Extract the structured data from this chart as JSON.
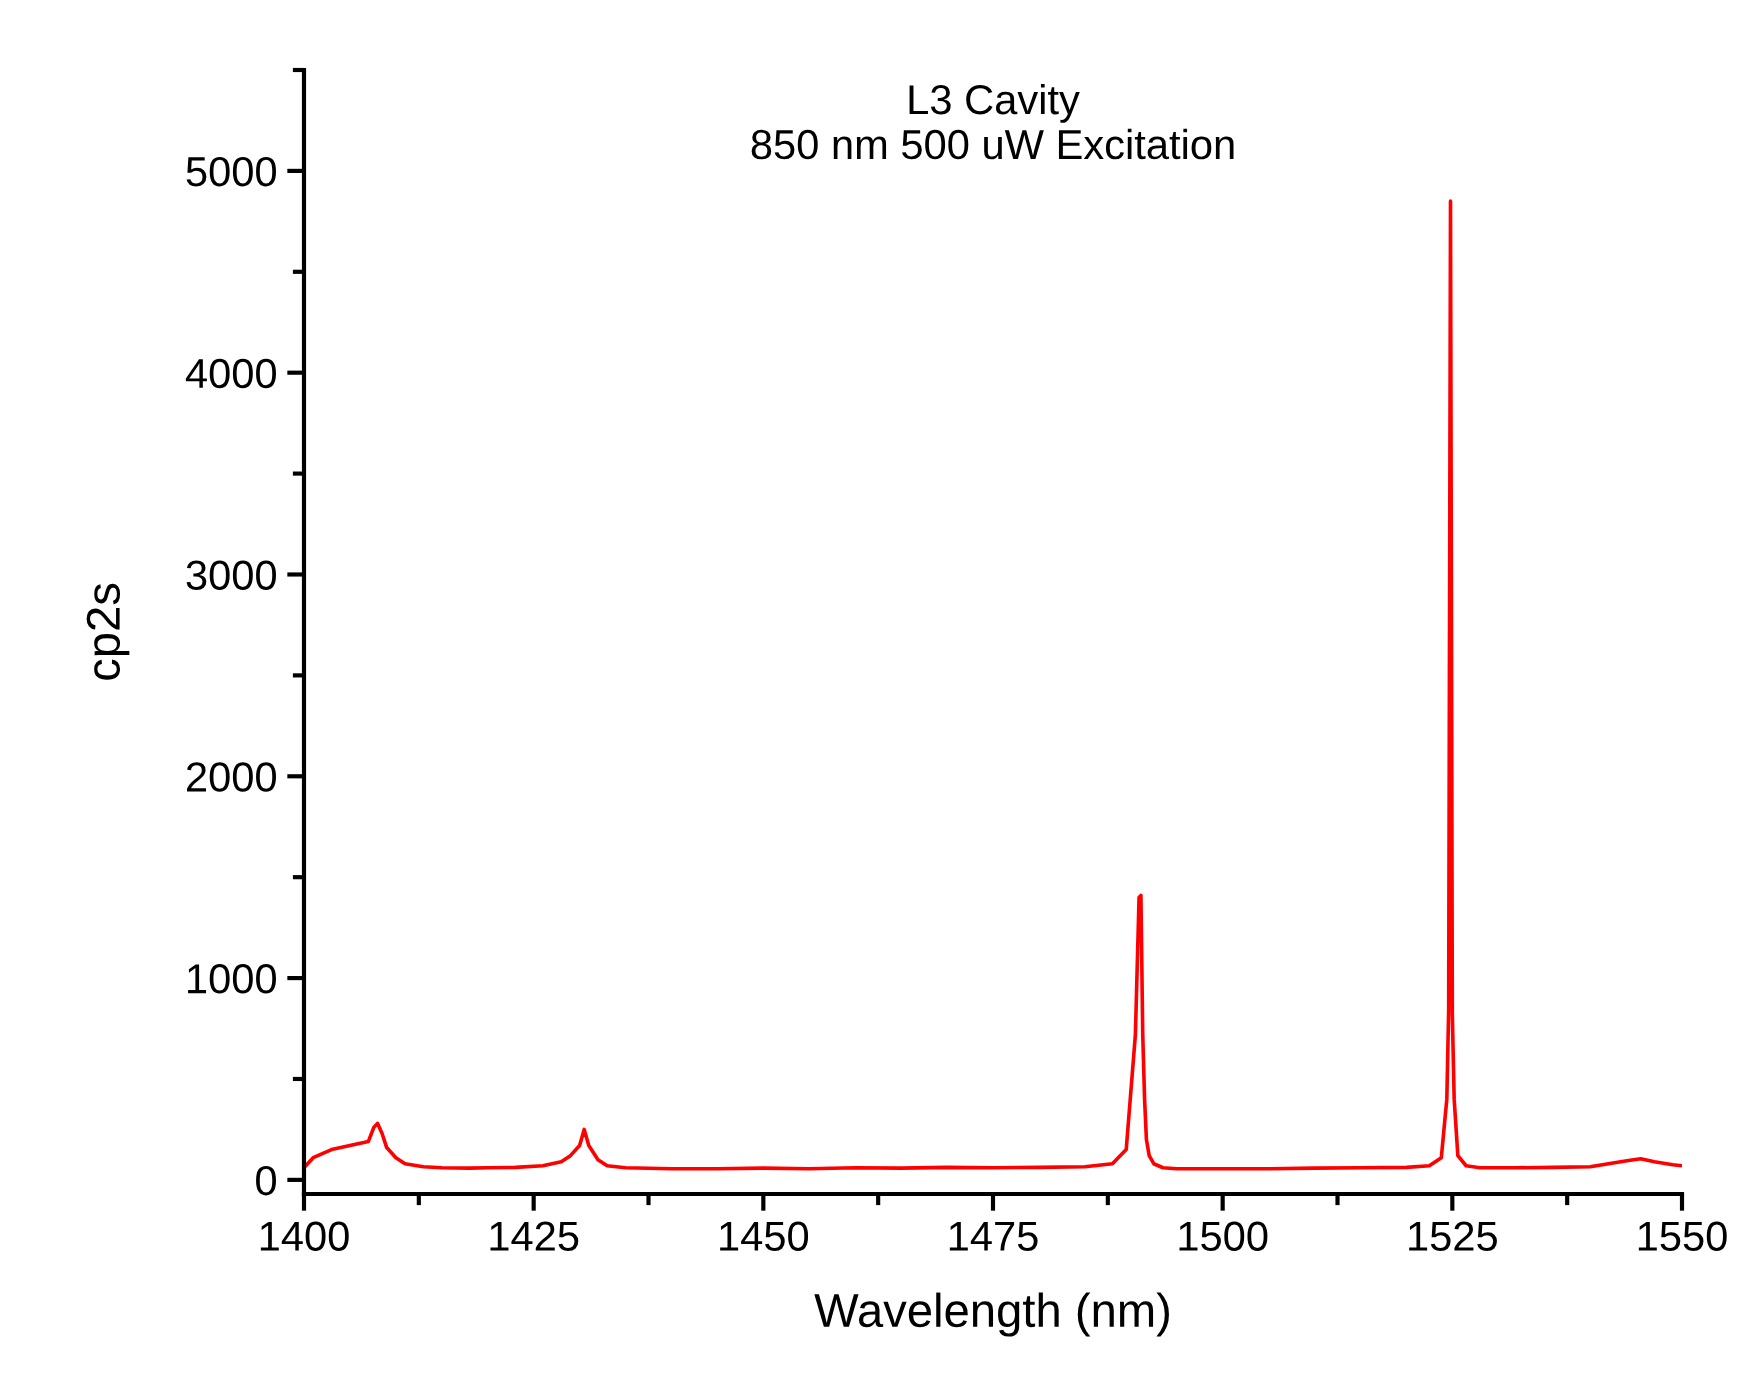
{
  "chart_data": {
    "type": "line",
    "title": "L3 Cavity\n850 nm 500 uW Excitation",
    "xlabel": "Wavelength (nm)",
    "ylabel": "cp2s",
    "xlim": [
      1400,
      1550
    ],
    "xticks": [
      1400,
      1425,
      1450,
      1475,
      1500,
      1525,
      1550
    ],
    "ylim": [
      -70,
      5500
    ],
    "yticks": [
      0,
      1000,
      2000,
      3000,
      4000,
      5000
    ],
    "grid": false,
    "legend": false,
    "series": [
      {
        "color": "#ff0000",
        "x": [
          1400,
          1401,
          1402,
          1403,
          1404,
          1405,
          1406,
          1407,
          1407.6,
          1408,
          1408.5,
          1409,
          1410,
          1411,
          1413,
          1415,
          1418,
          1420,
          1423,
          1426,
          1428,
          1429,
          1430,
          1430.5,
          1431,
          1432,
          1433,
          1435,
          1440,
          1445,
          1450,
          1455,
          1460,
          1465,
          1470,
          1475,
          1480,
          1485,
          1488,
          1489.5,
          1490.5,
          1490.9,
          1491.1,
          1491.3,
          1491.5,
          1491.7,
          1492,
          1492.5,
          1493.5,
          1495,
          1500,
          1505,
          1510,
          1515,
          1520,
          1522.5,
          1523.8,
          1524.4,
          1524.6,
          1524.8,
          1525,
          1525.2,
          1525.6,
          1526.5,
          1528,
          1532,
          1536,
          1540,
          1542,
          1544,
          1545.5,
          1547,
          1549,
          1550
        ],
        "values": [
          60,
          110,
          130,
          150,
          160,
          170,
          180,
          190,
          260,
          280,
          230,
          160,
          110,
          80,
          65,
          60,
          58,
          60,
          62,
          70,
          90,
          120,
          170,
          250,
          170,
          100,
          70,
          60,
          55,
          55,
          58,
          55,
          60,
          58,
          62,
          60,
          62,
          65,
          80,
          150,
          720,
          1400,
          1410,
          720,
          400,
          200,
          120,
          80,
          60,
          55,
          55,
          55,
          58,
          60,
          62,
          70,
          110,
          400,
          840,
          4850,
          820,
          400,
          120,
          70,
          60,
          60,
          62,
          65,
          80,
          95,
          105,
          90,
          75,
          70
        ]
      }
    ]
  }
}
